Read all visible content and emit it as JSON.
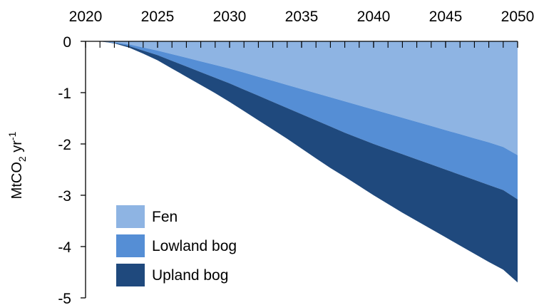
{
  "chart_data": {
    "type": "area",
    "stacked": true,
    "x": [
      2021,
      2022,
      2023,
      2024,
      2025,
      2026,
      2027,
      2028,
      2029,
      2030,
      2031,
      2032,
      2033,
      2034,
      2035,
      2036,
      2037,
      2038,
      2039,
      2040,
      2041,
      2042,
      2043,
      2044,
      2045,
      2046,
      2047,
      2048,
      2049,
      2050
    ],
    "series": [
      {
        "name": "Fen",
        "color": "#8eb4e3",
        "values": [
          0,
          -0.02,
          -0.06,
          -0.12,
          -0.18,
          -0.25,
          -0.32,
          -0.39,
          -0.46,
          -0.53,
          -0.61,
          -0.69,
          -0.77,
          -0.85,
          -0.93,
          -1.01,
          -1.09,
          -1.17,
          -1.25,
          -1.33,
          -1.41,
          -1.49,
          -1.57,
          -1.65,
          -1.73,
          -1.81,
          -1.89,
          -1.97,
          -2.06,
          -2.22
        ]
      },
      {
        "name": "Lowland bog",
        "color": "#558ed5",
        "values": [
          0,
          -0.01,
          -0.03,
          -0.06,
          -0.09,
          -0.13,
          -0.17,
          -0.21,
          -0.25,
          -0.29,
          -0.33,
          -0.37,
          -0.41,
          -0.45,
          -0.49,
          -0.53,
          -0.57,
          -0.61,
          -0.64,
          -0.67,
          -0.69,
          -0.71,
          -0.73,
          -0.75,
          -0.77,
          -0.79,
          -0.81,
          -0.83,
          -0.84,
          -0.86
        ]
      },
      {
        "name": "Upland bog",
        "color": "#1f497d",
        "values": [
          0,
          -0.01,
          -0.03,
          -0.06,
          -0.1,
          -0.15,
          -0.2,
          -0.25,
          -0.3,
          -0.36,
          -0.42,
          -0.48,
          -0.54,
          -0.6,
          -0.67,
          -0.74,
          -0.81,
          -0.86,
          -0.93,
          -1.0,
          -1.07,
          -1.14,
          -1.2,
          -1.26,
          -1.32,
          -1.38,
          -1.44,
          -1.5,
          -1.55,
          -1.62
        ]
      }
    ],
    "x_tick_labels": [
      "2020",
      "2025",
      "2030",
      "2035",
      "2040",
      "2045",
      "2050"
    ],
    "x_tick_values": [
      2020,
      2025,
      2030,
      2035,
      2040,
      2045,
      2050
    ],
    "x_minor_ticks": [
      2021,
      2022,
      2023,
      2024,
      2026,
      2027,
      2028,
      2029,
      2031,
      2032,
      2033,
      2034,
      2036,
      2037,
      2038,
      2039,
      2041,
      2042,
      2043,
      2044,
      2046,
      2047,
      2048,
      2049
    ],
    "xlim": [
      2020,
      2050
    ],
    "x_axis_position": "top",
    "y_tick_labels": [
      "0",
      "-1",
      "-2",
      "-3",
      "-4",
      "-5"
    ],
    "y_tick_values": [
      0,
      -1,
      -2,
      -3,
      -4,
      -5
    ],
    "ylim": [
      -5,
      0
    ],
    "ylabel": {
      "base": "MtCO",
      "subscript": "2",
      "middle": " yr",
      "superscript": "-1"
    },
    "grid": false,
    "legend_position": "bottom-left"
  }
}
